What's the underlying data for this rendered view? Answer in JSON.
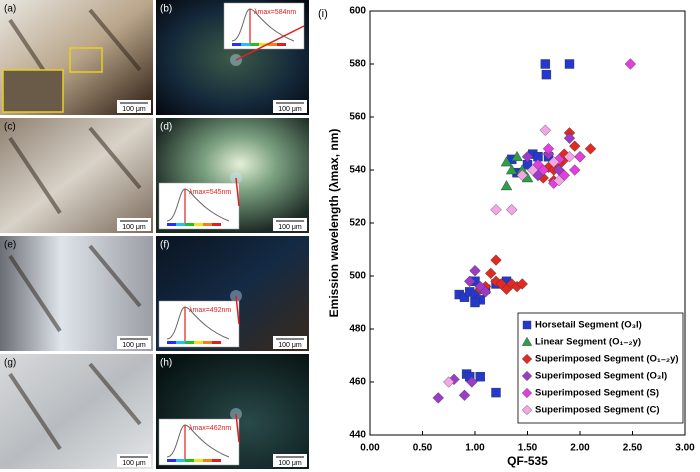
{
  "panels": [
    {
      "label": "(a)",
      "scale": "100 μm"
    },
    {
      "label": "(b)",
      "scale": "100 μm",
      "peak": "λmax=584nm"
    },
    {
      "label": "(c)",
      "scale": "100 μm"
    },
    {
      "label": "(d)",
      "scale": "100 μm",
      "peak": "λmax=545nm"
    },
    {
      "label": "(e)",
      "scale": "100 μm"
    },
    {
      "label": "(f)",
      "scale": "100 μm",
      "peak": "λmax=492nm"
    },
    {
      "label": "(g)",
      "scale": "100 μm"
    },
    {
      "label": "(h)",
      "scale": "100 μm",
      "peak": "λmax=462nm"
    }
  ],
  "chart_data": {
    "type": "scatter",
    "panel_label": "(i)",
    "x_label": "QF-535",
    "y_label": "Emission wavelength (λmax, nm)",
    "xlim": [
      0,
      3
    ],
    "ylim": [
      440,
      600
    ],
    "xticks": [
      {
        "value": 0,
        "label": "0.00"
      },
      {
        "value": 0.5,
        "label": "0.50"
      },
      {
        "value": 1,
        "label": "1.00"
      },
      {
        "value": 1.5,
        "label": "1.50"
      },
      {
        "value": 2,
        "label": "2.00"
      },
      {
        "value": 2.5,
        "label": "2.50"
      },
      {
        "value": 3,
        "label": "3.00"
      }
    ],
    "yticks": [
      440,
      460,
      480,
      500,
      520,
      540,
      560,
      580,
      600
    ],
    "legend": "lower right",
    "series": [
      {
        "name": "Horsetail Segment (O₃l)",
        "color": "#2438d0",
        "marker": "square",
        "x": [
          1.67,
          1.68,
          1.9,
          0.92,
          0.95,
          1.05,
          1.2,
          0.85,
          0.9,
          0.95,
          1.0,
          1.05,
          1.1,
          1.0,
          1.2,
          1.3,
          1.4,
          1.5,
          1.55,
          1.6,
          1.7,
          1.35,
          1.0
        ],
        "y": [
          580,
          576,
          580,
          463,
          462,
          462,
          456,
          493,
          492,
          494,
          493,
          491,
          495,
          498,
          497,
          498,
          539,
          542,
          546,
          545,
          545,
          544,
          490
        ]
      },
      {
        "name": "Linear Segment (O₁₋₂y)",
        "color": "#2e9e4a",
        "marker": "triangle",
        "x": [
          1.3,
          1.4,
          1.45,
          1.3,
          1.5,
          1.35
        ],
        "y": [
          543,
          545,
          540,
          534,
          537,
          540
        ]
      },
      {
        "name": "Superimposed Segment (O₁₋₂y)",
        "color": "#e02a22",
        "marker": "diamond",
        "x": [
          1.6,
          1.7,
          1.75,
          1.8,
          1.85,
          1.9,
          1.95,
          2.0,
          2.1,
          1.65,
          1.75,
          1.2,
          1.15,
          1.1,
          1.2,
          1.25,
          1.3,
          1.35,
          1.4,
          1.45,
          1.05,
          1.85
        ],
        "y": [
          538,
          541,
          540,
          542,
          544,
          554,
          549,
          545,
          548,
          537,
          536,
          506,
          501,
          496,
          498,
          497,
          495,
          497,
          496,
          497,
          495,
          546
        ]
      },
      {
        "name": "Superimposed Segment (O₃l)",
        "color": "#9a3cc8",
        "marker": "diamond",
        "x": [
          0.65,
          0.8,
          0.9,
          0.97,
          1.5,
          1.6,
          1.7,
          1.8,
          1.9,
          1.0,
          0.95,
          1.05,
          1.1
        ],
        "y": [
          454,
          461,
          455,
          460,
          545,
          538,
          546,
          540,
          552,
          502,
          498,
          496,
          494
        ]
      },
      {
        "name": "Superimposed Segment (S)",
        "color": "#e23ee0",
        "marker": "diamond",
        "x": [
          2.48,
          1.65,
          1.75,
          1.85,
          1.95,
          2.0,
          1.7,
          1.8,
          1.6
        ],
        "y": [
          580,
          540,
          535,
          538,
          540,
          545,
          548,
          544,
          542
        ]
      },
      {
        "name": "Superimposed Segment (C)",
        "color": "#f2a6e6",
        "marker": "diamond",
        "x": [
          1.2,
          1.35,
          1.67,
          1.75,
          1.9,
          1.55,
          1.45,
          1.8,
          0.75
        ],
        "y": [
          525,
          525,
          555,
          543,
          545,
          540,
          538,
          536,
          460
        ]
      }
    ]
  }
}
